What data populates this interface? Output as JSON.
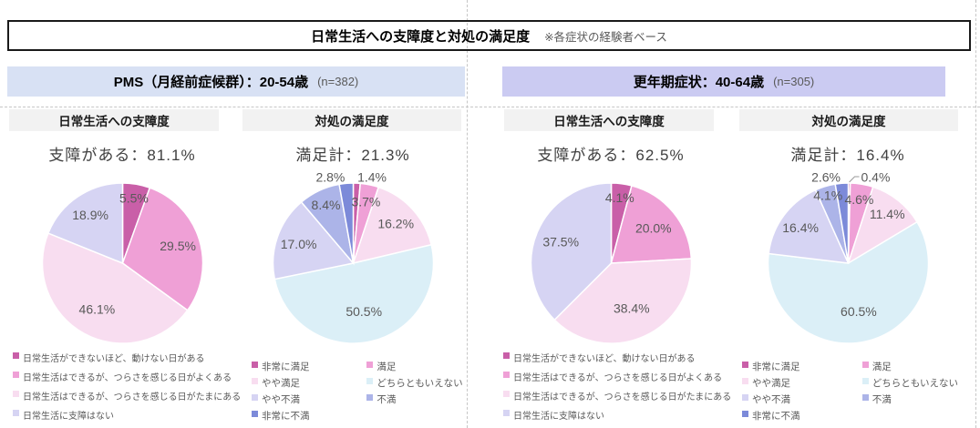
{
  "title": {
    "main": "日常生活への支障度と対処の満足度",
    "note": "※各症状の経験者ベース"
  },
  "colors": {
    "dark_pink": "#C95FA8",
    "med_pink": "#EFA0D6",
    "pale_pink": "#F8DDF0",
    "pale_cyan": "#DBEFF7",
    "pale_lavender": "#D6D4F3",
    "med_lavender": "#ACB4E8",
    "blue_purple": "#7C8AD9",
    "pms_header_bg": "#D8E1F4",
    "meno_header_bg": "#CBCBF2",
    "subheader_bg": "#F2F2F2",
    "label_gray": "#595959"
  },
  "sections": [
    {
      "header": "PMS（月経前症候群）：20-54歳",
      "sample": "(n=382)",
      "columns": [
        "日常生活への支障度",
        "対処の満足度"
      ]
    },
    {
      "header": "更年期症状：40-64歳",
      "sample": "(n=305)",
      "columns": [
        "日常生活への支障度",
        "対処の満足度"
      ]
    }
  ],
  "legends": {
    "impact": {
      "type": "single",
      "items": [
        {
          "label": "日常生活ができないほど、動けない日がある",
          "color": "dark_pink"
        },
        {
          "label": "日常生活はできるが、つらさを感じる日がよくある",
          "color": "med_pink"
        },
        {
          "label": "日常生活はできるが、つらさを感じる日がたまにある",
          "color": "pale_pink"
        },
        {
          "label": "日常生活に支障はない",
          "color": "pale_lavender"
        }
      ]
    },
    "satisfaction": {
      "type": "two-col",
      "col1": [
        {
          "label": "非常に満足",
          "color": "dark_pink"
        },
        {
          "label": "やや満足",
          "color": "pale_pink"
        },
        {
          "label": "やや不満",
          "color": "pale_lavender"
        },
        {
          "label": "非常に不満",
          "color": "blue_purple"
        }
      ],
      "col2": [
        {
          "label": "満足",
          "color": "med_pink"
        },
        {
          "label": "どちらともいえない",
          "color": "pale_cyan"
        },
        {
          "label": "不満",
          "color": "med_lavender"
        }
      ]
    }
  },
  "chart_data": [
    {
      "type": "pie",
      "section": "PMS（月経前症候群）：20-54歳 (n=382)",
      "title": "日常生活への支障度",
      "headline": "支障がある：81.1%",
      "start_angle": "top",
      "direction": "clockwise",
      "legend_ref": "impact",
      "legend_position": "bottom",
      "labels": [
        "日常生活ができないほど、動けない日がある",
        "日常生活はできるが、つらさを感じる日がよくある",
        "日常生活はできるが、つらさを感じる日がたまにある",
        "日常生活に支障はない"
      ],
      "values": [
        5.5,
        29.5,
        46.1,
        18.9
      ],
      "color_keys": [
        "dark_pink",
        "med_pink",
        "pale_pink",
        "pale_lavender"
      ],
      "label_r": [
        0.82,
        0.72,
        0.66,
        0.72
      ]
    },
    {
      "type": "pie",
      "section": "PMS（月経前症候群）：20-54歳 (n=382)",
      "title": "対処の満足度",
      "headline": "満足計：21.3%",
      "start_angle": "top",
      "direction": "clockwise",
      "legend_ref": "satisfaction",
      "legend_position": "bottom",
      "labels": [
        "非常に満足",
        "満足",
        "やや満足",
        "どちらともいえない",
        "やや不満",
        "不満",
        "非常に不満"
      ],
      "values": [
        1.4,
        3.7,
        16.2,
        50.5,
        17.0,
        8.4,
        2.8
      ],
      "color_keys": [
        "dark_pink",
        "med_pink",
        "pale_pink",
        "pale_cyan",
        "pale_lavender",
        "med_lavender",
        "blue_purple"
      ],
      "label_r": [
        0,
        0.78,
        0.72,
        0.62,
        0.72,
        0.8,
        0
      ],
      "outside": {
        "0": "start",
        "6": "end"
      }
    },
    {
      "type": "pie",
      "section": "更年期症状：40-64歳 (n=305)",
      "title": "日常生活への支障度",
      "headline": "支障がある：62.5%",
      "start_angle": "top",
      "direction": "clockwise",
      "legend_ref": "impact",
      "legend_position": "bottom",
      "labels": [
        "日常生活ができないほど、動けない日がある",
        "日常生活はできるが、つらさを感じる日がよくある",
        "日常生活はできるが、つらさを感じる日がたまにある",
        "日常生活に支障はない"
      ],
      "values": [
        4.1,
        20.0,
        38.4,
        37.5
      ],
      "color_keys": [
        "dark_pink",
        "med_pink",
        "pale_pink",
        "pale_lavender"
      ],
      "label_r": [
        0.82,
        0.68,
        0.62,
        0.68
      ]
    },
    {
      "type": "pie",
      "section": "更年期症状：40-64歳 (n=305)",
      "title": "対処の満足度",
      "headline": "満足計：16.4%",
      "start_angle": "top",
      "direction": "clockwise",
      "legend_ref": "satisfaction",
      "legend_position": "bottom",
      "labels": [
        "非常に満足",
        "満足",
        "やや満足",
        "どちらともいえない",
        "やや不満",
        "不満",
        "非常に不満"
      ],
      "values": [
        0.4,
        4.6,
        11.4,
        60.5,
        16.4,
        4.1,
        2.6
      ],
      "color_keys": [
        "dark_pink",
        "med_pink",
        "pale_pink",
        "pale_cyan",
        "pale_lavender",
        "med_lavender",
        "blue_purple"
      ],
      "label_r": [
        0,
        0.8,
        0.78,
        0.62,
        0.74,
        0.88,
        0
      ],
      "outside": {
        "0": "start",
        "6": "end"
      },
      "leader": [
        0
      ]
    }
  ]
}
